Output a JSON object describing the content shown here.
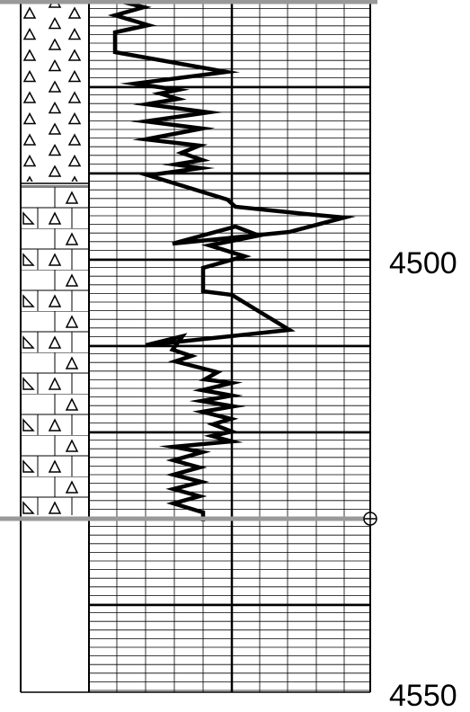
{
  "log": {
    "depth_labels": [
      {
        "value": "4500"
      },
      {
        "value": "4550"
      }
    ],
    "lithology": [
      {
        "name": "triangle-pattern-unit",
        "pattern": "triangles"
      },
      {
        "name": "brick-triangle-pattern-unit",
        "pattern": "bricks-with-triangles"
      },
      {
        "name": "blank-unit",
        "pattern": "none"
      }
    ],
    "marker": {
      "icon": "crosshair-circle-icon"
    },
    "colors": {
      "grid": "#000000",
      "boundary": "#999999",
      "curve": "#000000"
    }
  }
}
